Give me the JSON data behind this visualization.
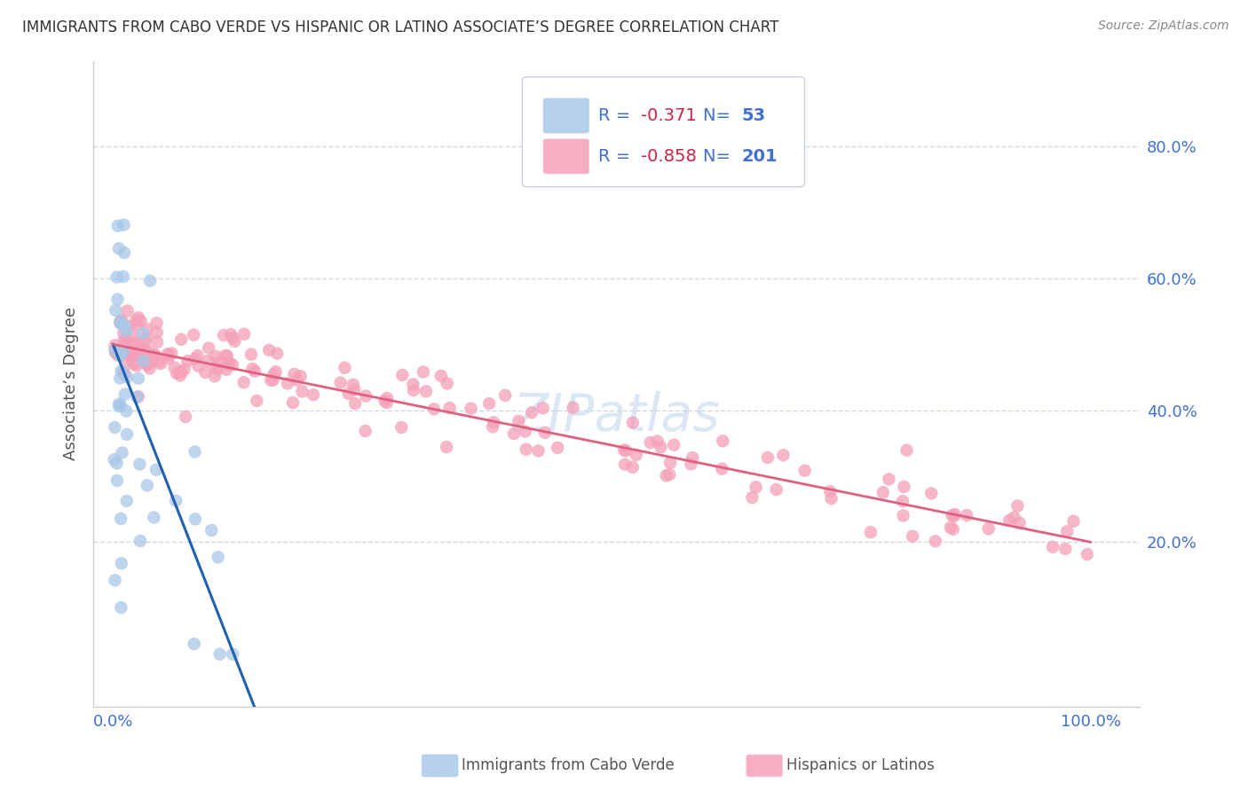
{
  "title": "IMMIGRANTS FROM CABO VERDE VS HISPANIC OR LATINO ASSOCIATE’S DEGREE CORRELATION CHART",
  "source": "Source: ZipAtlas.com",
  "ylabel": "Associate’s Degree",
  "legend_blue_R": "-0.371",
  "legend_blue_N": "53",
  "legend_pink_R": "-0.858",
  "legend_pink_N": "201",
  "legend_blue_label": "Immigrants from Cabo Verde",
  "legend_pink_label": "Hispanics or Latinos",
  "blue_color": "#a8c8e8",
  "pink_color": "#f4a0b8",
  "blue_line_color": "#2060b0",
  "pink_line_color": "#e06080",
  "text_color": "#4070d0",
  "title_color": "#333333",
  "watermark": "ZIPatlas",
  "grid_color": "#d0d8e8",
  "legend_text_color": "#4070d0",
  "legend_R_color": "#cc2244",
  "legend_N_color": "#4070d0"
}
